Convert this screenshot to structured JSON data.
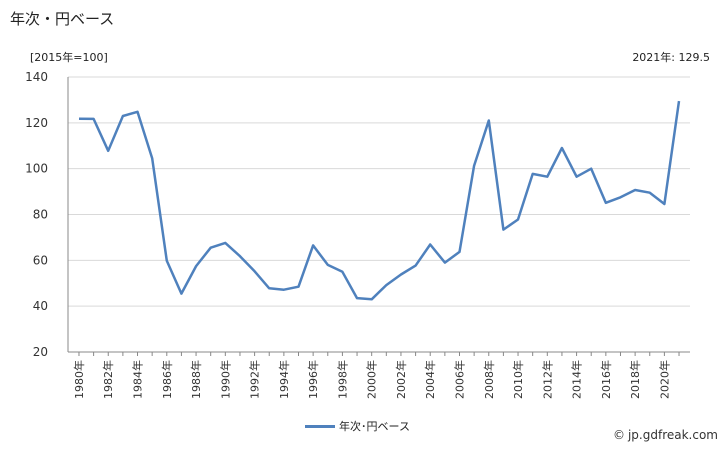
{
  "header": {
    "title": "年次・円ベース",
    "unit": "[2015年=100]",
    "note": "2021年: 129.5"
  },
  "legend": {
    "label": "年次･円ベース"
  },
  "credit": {
    "icon": "copyright-icon",
    "text": "jp.gdfreak.com"
  },
  "chart_data": {
    "type": "line",
    "title": "年次・円ベース",
    "ylabel": "[2015年=100]",
    "ylim": [
      20,
      140
    ],
    "yticks": [
      20,
      40,
      60,
      80,
      100,
      120,
      140
    ],
    "grid": true,
    "legend_position": "bottom-center",
    "x": [
      1980,
      1981,
      1982,
      1983,
      1984,
      1985,
      1986,
      1987,
      1988,
      1989,
      1990,
      1991,
      1992,
      1993,
      1994,
      1995,
      1996,
      1997,
      1998,
      1999,
      2000,
      2001,
      2002,
      2003,
      2004,
      2005,
      2006,
      2007,
      2008,
      2009,
      2010,
      2011,
      2012,
      2013,
      2014,
      2015,
      2016,
      2017,
      2018,
      2019,
      2020,
      2021
    ],
    "xtick_labels": [
      "1980年",
      "1982年",
      "1984年",
      "1986年",
      "1988年",
      "1990年",
      "1992年",
      "1994年",
      "1996年",
      "1998年",
      "2000年",
      "2002年",
      "2004年",
      "2006年",
      "2008年",
      "2010年",
      "2012年",
      "2014年",
      "2016年",
      "2018年",
      "2020年"
    ],
    "series": [
      {
        "name": "年次･円ベース",
        "color": "#4f81bd",
        "values": [
          121.8,
          121.7,
          107.8,
          123.0,
          124.8,
          104.5,
          59.8,
          45.5,
          57.5,
          65.5,
          67.6,
          61.8,
          55.2,
          47.8,
          47.2,
          48.5,
          66.5,
          58.0,
          55.0,
          43.5,
          43.0,
          49.2,
          53.8,
          57.7,
          66.9,
          59.0,
          63.7,
          101.3,
          121.0,
          73.4,
          77.8,
          97.7,
          96.5,
          109.0,
          96.5,
          100.0,
          85.1,
          87.5,
          90.7,
          89.5,
          84.6,
          129.5
        ]
      }
    ]
  }
}
